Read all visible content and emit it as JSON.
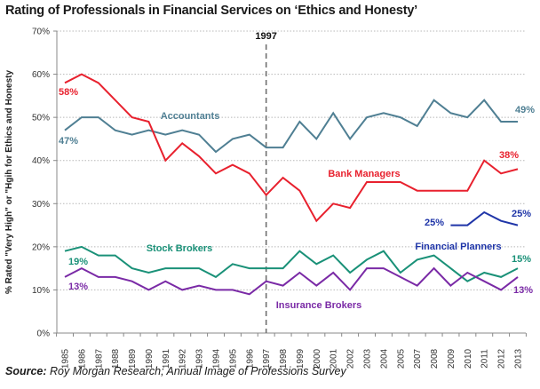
{
  "chart_data": {
    "type": "line",
    "title": "Rating of Professionals in Financial Services on ‘Ethics and Honesty’",
    "xlabel": "",
    "ylabel": "% Rated \"Very High\" or \"Hgih for Ethics and Honesty",
    "ylim": [
      0,
      70
    ],
    "yticks": [
      "0%",
      "10%",
      "20%",
      "30%",
      "40%",
      "50%",
      "60%",
      "70%"
    ],
    "grid": true,
    "categories": [
      "1985",
      "1986",
      "1987",
      "1988",
      "1989",
      "1990",
      "1991",
      "1992",
      "1993",
      "1994",
      "1995",
      "1996",
      "1997",
      "1998",
      "1999",
      "2000",
      "2001",
      "2002",
      "2003",
      "2004",
      "2005",
      "2007",
      "2008",
      "2009",
      "2010",
      "2011",
      "2012",
      "2013"
    ],
    "reference_line": {
      "category": "1997",
      "label": "1997"
    },
    "series": [
      {
        "name": "Accountants",
        "color": "#4f7f93",
        "values": [
          47,
          50,
          50,
          47,
          46,
          47,
          46,
          47,
          46,
          42,
          45,
          46,
          43,
          43,
          49,
          45,
          51,
          45,
          50,
          51,
          50,
          48,
          54,
          51,
          50,
          54,
          49,
          49
        ],
        "start_label": "47%",
        "end_label": "49%"
      },
      {
        "name": "Bank Managers",
        "color": "#e8212e",
        "values": [
          58,
          60,
          58,
          54,
          50,
          49,
          40,
          44,
          41,
          37,
          39,
          37,
          32,
          36,
          33,
          26,
          30,
          29,
          35,
          35,
          35,
          33,
          33,
          33,
          33,
          40,
          37,
          38
        ],
        "start_label": "58%",
        "end_label": "38%"
      },
      {
        "name": "Financial Planners",
        "color": "#1f35a8",
        "values": [
          null,
          null,
          null,
          null,
          null,
          null,
          null,
          null,
          null,
          null,
          null,
          null,
          null,
          null,
          null,
          null,
          null,
          null,
          null,
          null,
          null,
          null,
          null,
          25,
          25,
          28,
          26,
          25
        ],
        "start_label": "25%",
        "end_label": "25%"
      },
      {
        "name": "Stock Brokers",
        "color": "#1a9178",
        "values": [
          19,
          20,
          18,
          18,
          15,
          14,
          15,
          15,
          15,
          13,
          16,
          15,
          15,
          15,
          19,
          16,
          18,
          14,
          17,
          19,
          14,
          17,
          18,
          15,
          12,
          14,
          13,
          15
        ],
        "start_label": "19%",
        "end_label": "15%"
      },
      {
        "name": "Insurance Brokers",
        "color": "#7a2aa6",
        "values": [
          13,
          15,
          13,
          13,
          12,
          10,
          12,
          10,
          11,
          10,
          10,
          9,
          12,
          11,
          14,
          11,
          14,
          10,
          15,
          15,
          13,
          11,
          15,
          11,
          14,
          12,
          10,
          13
        ],
        "start_label": "13%",
        "end_label": "13%"
      }
    ],
    "source": {
      "prefix": "Source:",
      "text": " Roy Morgan Research; Annual Image of Professions Survey"
    }
  }
}
